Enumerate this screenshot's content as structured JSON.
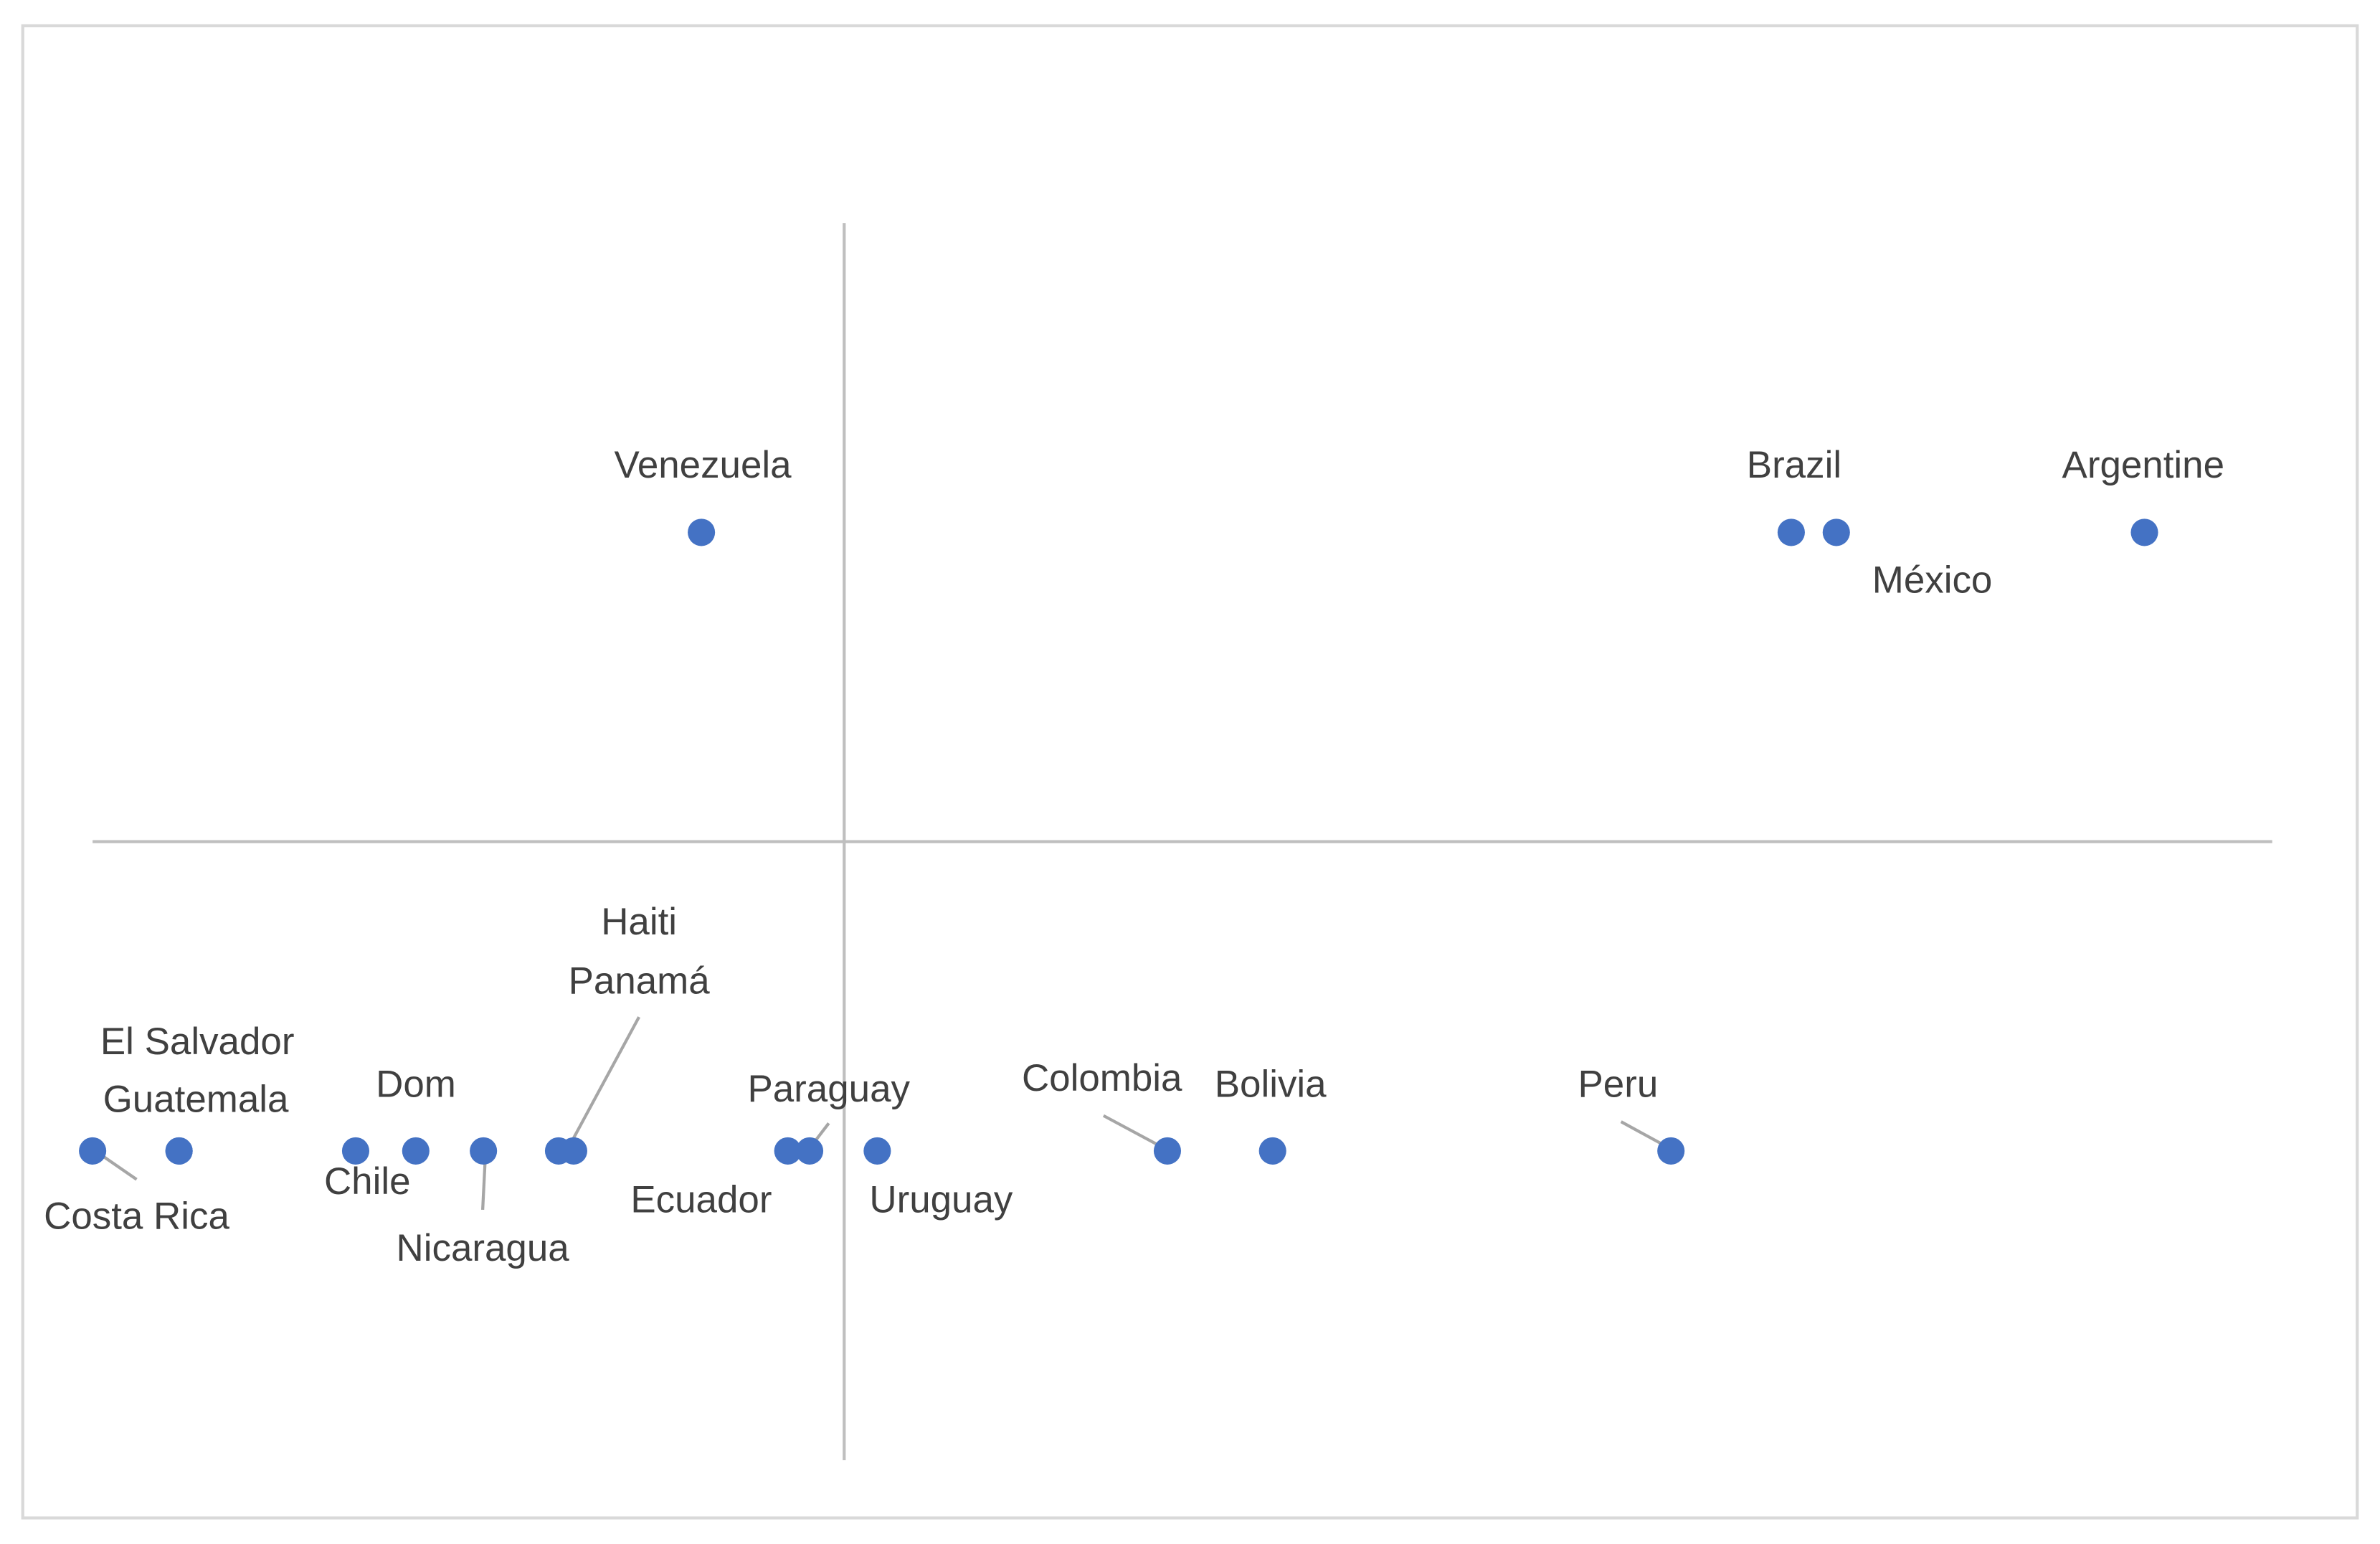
{
  "chart_data": {
    "type": "scatter",
    "labels": [
      "Costa Rica",
      "El Salvador",
      "Guatemala",
      "Chile",
      "Dom",
      "Nicaragua",
      "Haiti",
      "Panamá",
      "Ecuador",
      "Paraguay",
      "Uruguay",
      "Colombia",
      "Bolivia",
      "Peru",
      "Venezuela",
      "Brazil",
      "México",
      "Argentine"
    ],
    "x": [
      -10,
      -8.85,
      -8.85,
      -6.5,
      -5.7,
      -4.8,
      -3.8,
      -3.6,
      -0.75,
      -0.46,
      0.44,
      4.3,
      5.7,
      11.0,
      -1.9,
      12.6,
      13.2,
      17.3
    ],
    "values": [
      -1,
      -1,
      -1,
      -1,
      -1,
      -1,
      -1,
      -1,
      -1,
      -1,
      -1,
      -1,
      -1,
      -1,
      1,
      1,
      1,
      1
    ],
    "color": "#4472c4",
    "xlim": [
      -10,
      19
    ],
    "ylim": [
      -2,
      2
    ]
  }
}
